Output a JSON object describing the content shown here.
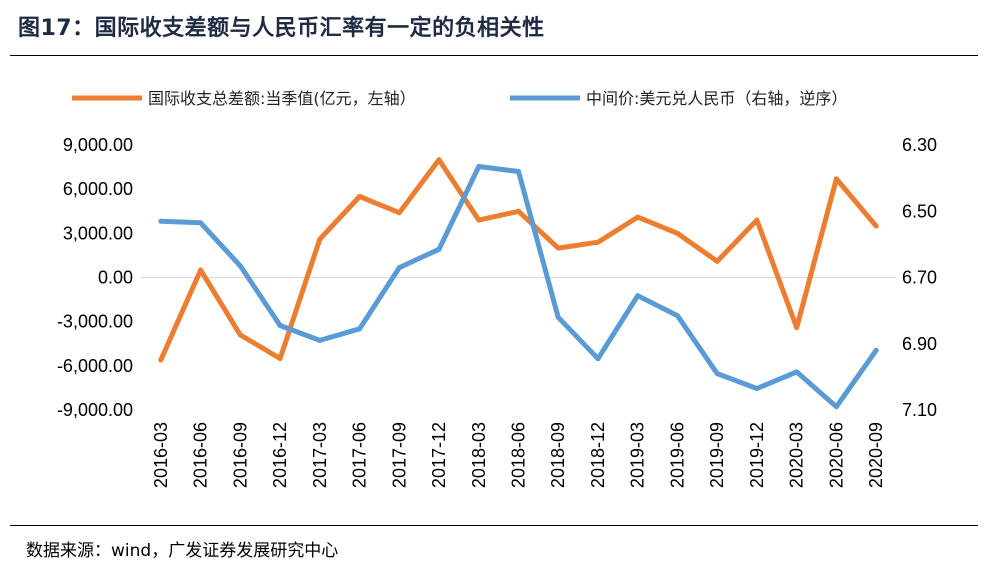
{
  "figure_title": "图17：国际收支差额与人民币汇率有一定的负相关性",
  "source_label": "数据来源：wind，广发证券发展研究中心",
  "colors": {
    "orange": "#ED7D31",
    "blue": "#5B9BD5",
    "gridline": "#D9D9D9",
    "rule": "#000000"
  },
  "chart_data": {
    "type": "line",
    "title": "",
    "categories": [
      "2016-03",
      "2016-06",
      "2016-09",
      "2016-12",
      "2017-03",
      "2017-06",
      "2017-09",
      "2017-12",
      "2018-03",
      "2018-06",
      "2018-09",
      "2018-12",
      "2019-03",
      "2019-06",
      "2019-09",
      "2019-12",
      "2020-03",
      "2020-06",
      "2020-09"
    ],
    "left_axis": {
      "ticks": [
        9000,
        6000,
        3000,
        0,
        -3000,
        -6000,
        -9000
      ],
      "tick_labels": [
        "9,000.00",
        "6,000.00",
        "3,000.00",
        "0.00",
        "-3,000.00",
        "-6,000.00",
        "-9,000.00"
      ],
      "ylim": [
        -9000,
        9000
      ]
    },
    "right_axis": {
      "ticks": [
        6.3,
        6.5,
        6.7,
        6.9,
        7.1
      ],
      "tick_labels": [
        "6.30",
        "6.50",
        "6.70",
        "6.90",
        "7.10"
      ],
      "ylim": [
        6.3,
        7.1
      ],
      "inverted": true
    },
    "series": [
      {
        "name": "国际收支总差额:当季值(亿元，左轴）",
        "axis": "left",
        "color": "#ED7D31",
        "values": [
          -5600,
          500,
          -3900,
          -5500,
          2600,
          5500,
          4400,
          8000,
          3900,
          4500,
          2000,
          2400,
          4100,
          3000,
          1100,
          3900,
          -3400,
          6700,
          3500
        ]
      },
      {
        "name": "中间价:美元兑人民币（右轴，逆序）",
        "axis": "right",
        "color": "#5B9BD5",
        "values": [
          6.53,
          6.535,
          6.665,
          6.845,
          6.89,
          6.855,
          6.67,
          6.615,
          6.365,
          6.38,
          6.82,
          6.945,
          6.755,
          6.815,
          6.99,
          7.035,
          6.985,
          7.09,
          6.92
        ]
      }
    ]
  }
}
